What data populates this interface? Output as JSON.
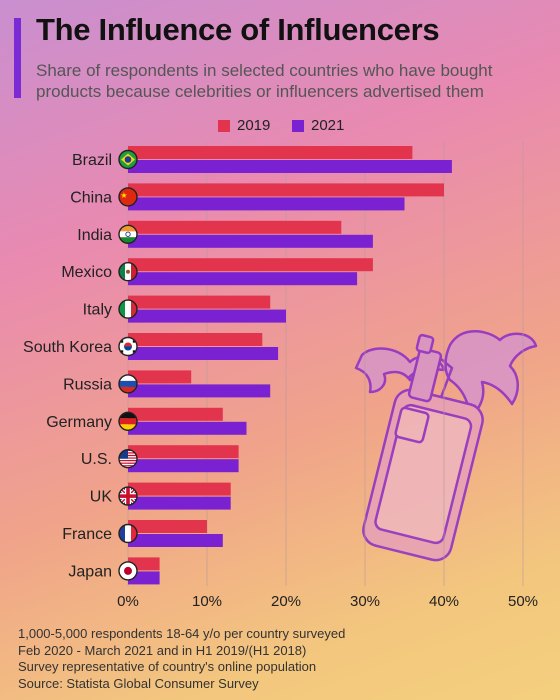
{
  "header": {
    "title": "The Influence of Influencers",
    "subtitle": "Share of respondents in selected countries who have bought products because celebrities or influencers advertised them"
  },
  "colors": {
    "series_2019": "#e3344e",
    "series_2021": "#7a22d1",
    "accent": "#7a2bd6",
    "grid": "#b89a9a"
  },
  "chart_data": {
    "type": "bar",
    "orientation": "horizontal",
    "title": "The Influence of Influencers",
    "subtitle": "Share of respondents in selected countries who have bought products because celebrities or influencers advertised them",
    "categories": [
      "Brazil",
      "China",
      "India",
      "Mexico",
      "Italy",
      "South Korea",
      "Russia",
      "Germany",
      "U.S.",
      "UK",
      "France",
      "Japan"
    ],
    "flag_icons": [
      "brazil-flag-icon",
      "china-flag-icon",
      "india-flag-icon",
      "mexico-flag-icon",
      "italy-flag-icon",
      "south-korea-flag-icon",
      "russia-flag-icon",
      "germany-flag-icon",
      "us-flag-icon",
      "uk-flag-icon",
      "france-flag-icon",
      "japan-flag-icon"
    ],
    "series": [
      {
        "name": "2019",
        "values": [
          36,
          40,
          27,
          31,
          18,
          17,
          8,
          12,
          14,
          13,
          10,
          4
        ]
      },
      {
        "name": "2021",
        "values": [
          41,
          35,
          31,
          29,
          20,
          19,
          18,
          15,
          14,
          13,
          12,
          4
        ]
      }
    ],
    "xlim": [
      0,
      50
    ],
    "xticks": [
      "0%",
      "10%",
      "20%",
      "30%",
      "40%",
      "50%"
    ],
    "grid": true,
    "legend_position": "top-center"
  },
  "footnote": {
    "lines": [
      "1,000-5,000 respondents 18-64 y/o per country surveyed",
      "Feb 2020 - March 2021 and in H1 2019/(H1 2018)",
      "Survey representative of country's online population",
      "Source: Statista Global Consumer Survey"
    ]
  }
}
